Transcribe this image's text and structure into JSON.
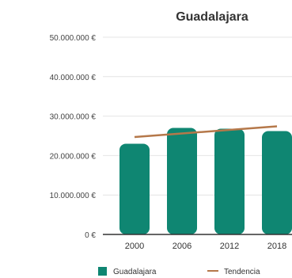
{
  "colors": {
    "bar": "#0f8672",
    "trend": "#b5784a",
    "grid": "#e4e4e4",
    "axis": "#333333"
  },
  "chart_data": {
    "type": "bar",
    "title": "Guadalajara",
    "categories": [
      "2000",
      "2006",
      "2012",
      "2018"
    ],
    "series": [
      {
        "name": "Guadalajara",
        "values": [
          23000000,
          27000000,
          26800000,
          26200000
        ]
      }
    ],
    "trend": {
      "name": "Tendencia",
      "values": [
        24700000,
        25600000,
        26500000,
        27400000
      ]
    },
    "ylim": [
      0,
      50000000
    ],
    "yticks": [
      {
        "value": 0,
        "label": "0 €"
      },
      {
        "value": 10000000,
        "label": "10.000.000 €"
      },
      {
        "value": 20000000,
        "label": "20.000.000 €"
      },
      {
        "value": 30000000,
        "label": "30.000.000 €"
      },
      {
        "value": 40000000,
        "label": "40.000.000 €"
      },
      {
        "value": 50000000,
        "label": "50.000.000 €"
      }
    ],
    "grid": true,
    "legend_position": "bottom",
    "legend": [
      "Guadalajara",
      "Tendencia"
    ]
  }
}
